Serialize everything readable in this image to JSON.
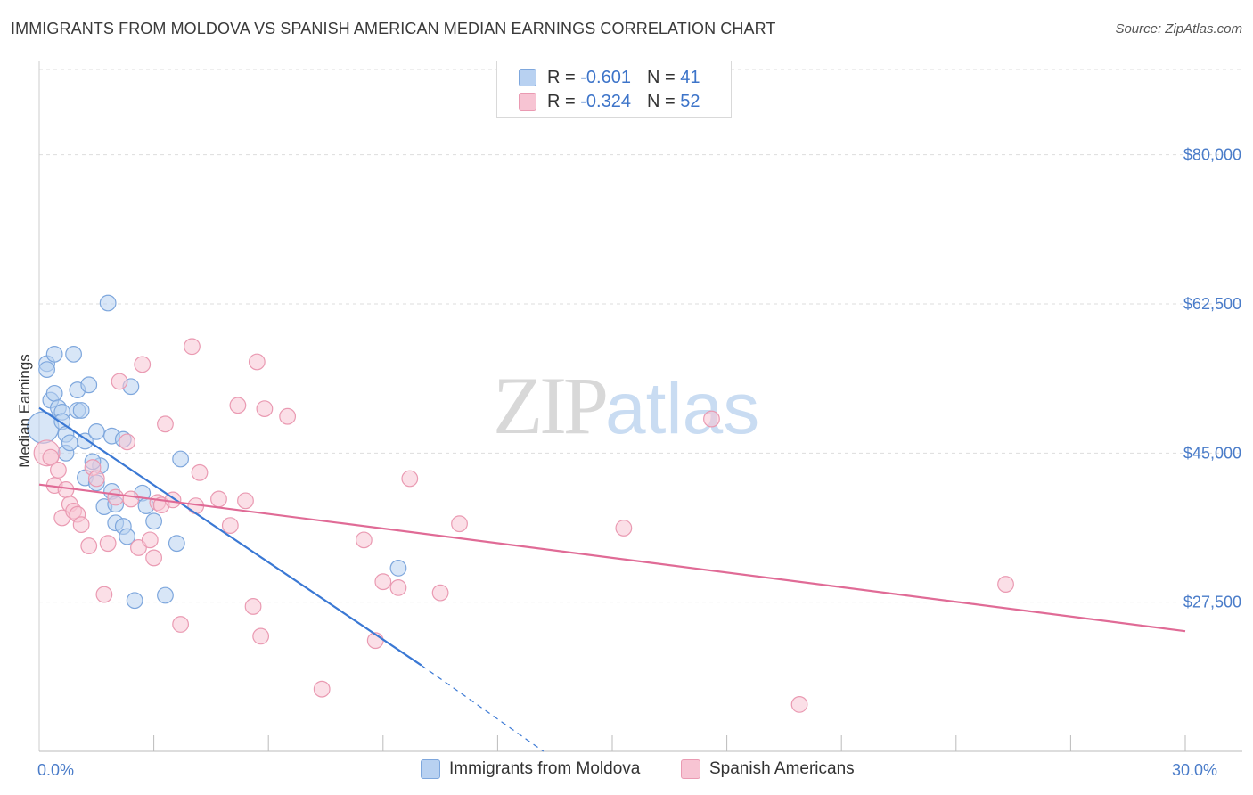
{
  "title": "IMMIGRANTS FROM MOLDOVA VS SPANISH AMERICAN MEDIAN EARNINGS CORRELATION CHART",
  "source": "Source: ZipAtlas.com",
  "watermark": {
    "zip": "ZIP",
    "atlas": "atlas"
  },
  "legend": {
    "rows": [
      {
        "r_label": "R =",
        "r_value": "-0.601",
        "n_label": "N =",
        "n_value": "41"
      },
      {
        "r_label": "R =",
        "r_value": "-0.324",
        "n_label": "N =",
        "n_value": "52"
      }
    ]
  },
  "colors": {
    "blue_fill": "#b8d1f1",
    "blue_stroke": "#7ea7dd",
    "blue_line": "#3a78d4",
    "pink_fill": "#f7c4d3",
    "pink_stroke": "#ea9ab2",
    "pink_line": "#e06b96",
    "grid": "#dddddd",
    "axis_text": "#4a7cc9"
  },
  "chart_data": {
    "type": "scatter",
    "title": "IMMIGRANTS FROM MOLDOVA VS SPANISH AMERICAN MEDIAN EARNINGS CORRELATION CHART",
    "xlabel": "",
    "ylabel": "Median Earnings",
    "xlim": [
      0,
      30
    ],
    "ylim": [
      10000,
      90000
    ],
    "x_tick_labels": [
      {
        "value": 0,
        "label": "0.0%"
      },
      {
        "value": 30,
        "label": "30.0%"
      }
    ],
    "x_minor_ticks": [
      3,
      6,
      9,
      12,
      15,
      18,
      21,
      24,
      27,
      30
    ],
    "y_ticks": [
      {
        "value": 80000,
        "label": "$80,000"
      },
      {
        "value": 62500,
        "label": "$62,500"
      },
      {
        "value": 45000,
        "label": "$45,000"
      },
      {
        "value": 27500,
        "label": "$27,500"
      }
    ],
    "grid": true,
    "series": [
      {
        "name": "Immigrants from Moldova",
        "color": "blue",
        "points": [
          [
            0.1,
            48000,
            22
          ],
          [
            0.2,
            55500,
            11
          ],
          [
            0.2,
            54800,
            11
          ],
          [
            0.4,
            56600,
            11
          ],
          [
            0.3,
            51200,
            11
          ],
          [
            0.4,
            52000,
            11
          ],
          [
            0.5,
            50300,
            11
          ],
          [
            0.6,
            49800,
            11
          ],
          [
            0.6,
            48700,
            11
          ],
          [
            0.7,
            47200,
            11
          ],
          [
            0.7,
            45000,
            11
          ],
          [
            0.8,
            46200,
            11
          ],
          [
            0.9,
            56600,
            11
          ],
          [
            1.0,
            52400,
            11
          ],
          [
            1.0,
            50000,
            11
          ],
          [
            1.1,
            50000,
            11
          ],
          [
            1.2,
            46400,
            11
          ],
          [
            1.3,
            53000,
            11
          ],
          [
            1.2,
            42100,
            11
          ],
          [
            1.5,
            41500,
            11
          ],
          [
            1.5,
            47500,
            11
          ],
          [
            1.6,
            43500,
            11
          ],
          [
            1.7,
            38700,
            11
          ],
          [
            1.9,
            47000,
            11
          ],
          [
            1.9,
            40500,
            11
          ],
          [
            2.0,
            39000,
            11
          ],
          [
            2.0,
            36800,
            11
          ],
          [
            2.2,
            36400,
            11
          ],
          [
            2.2,
            46600,
            11
          ],
          [
            2.3,
            35200,
            11
          ],
          [
            2.4,
            52800,
            11
          ],
          [
            1.8,
            62600,
            11
          ],
          [
            2.5,
            27700,
            11
          ],
          [
            2.7,
            40300,
            11
          ],
          [
            2.8,
            38800,
            11
          ],
          [
            3.0,
            37000,
            11
          ],
          [
            3.3,
            28300,
            11
          ],
          [
            3.6,
            34400,
            11
          ],
          [
            3.7,
            44300,
            11
          ],
          [
            9.4,
            31500,
            11
          ],
          [
            1.4,
            44000,
            11
          ]
        ],
        "trend": {
          "x0": 0,
          "y0": 50300,
          "x1": 10.0,
          "y1": 20100,
          "dash_x1": 13.2,
          "dash_y1": 10000
        }
      },
      {
        "name": "Spanish Americans",
        "color": "pink",
        "points": [
          [
            0.2,
            45000,
            18
          ],
          [
            0.3,
            44500,
            11
          ],
          [
            0.4,
            41200,
            11
          ],
          [
            0.5,
            43000,
            11
          ],
          [
            0.6,
            37400,
            11
          ],
          [
            0.7,
            40700,
            11
          ],
          [
            0.8,
            39000,
            11
          ],
          [
            0.9,
            38200,
            11
          ],
          [
            1.0,
            37800,
            11
          ],
          [
            1.1,
            36600,
            11
          ],
          [
            1.3,
            34100,
            11
          ],
          [
            1.4,
            43300,
            11
          ],
          [
            1.5,
            42000,
            11
          ],
          [
            1.7,
            28400,
            11
          ],
          [
            1.8,
            34400,
            11
          ],
          [
            2.0,
            39800,
            11
          ],
          [
            2.1,
            53400,
            11
          ],
          [
            2.3,
            46300,
            11
          ],
          [
            2.4,
            39600,
            11
          ],
          [
            2.6,
            33900,
            11
          ],
          [
            2.7,
            55400,
            11
          ],
          [
            2.9,
            34800,
            11
          ],
          [
            3.0,
            32700,
            11
          ],
          [
            3.1,
            39200,
            11
          ],
          [
            3.2,
            38900,
            11
          ],
          [
            3.3,
            48400,
            11
          ],
          [
            3.5,
            39500,
            11
          ],
          [
            3.7,
            24900,
            11
          ],
          [
            4.0,
            57500,
            11
          ],
          [
            4.1,
            38800,
            11
          ],
          [
            4.2,
            42700,
            11
          ],
          [
            4.7,
            39600,
            11
          ],
          [
            5.0,
            36500,
            11
          ],
          [
            5.2,
            50600,
            11
          ],
          [
            5.4,
            39400,
            11
          ],
          [
            5.6,
            27000,
            11
          ],
          [
            5.8,
            23500,
            11
          ],
          [
            5.7,
            55700,
            11
          ],
          [
            5.9,
            50200,
            11
          ],
          [
            6.5,
            49300,
            11
          ],
          [
            7.4,
            17300,
            11
          ],
          [
            8.5,
            34800,
            11
          ],
          [
            8.8,
            23000,
            11
          ],
          [
            9.0,
            29900,
            11
          ],
          [
            9.4,
            29200,
            11
          ],
          [
            9.7,
            42000,
            11
          ],
          [
            10.5,
            28600,
            11
          ],
          [
            11.0,
            36700,
            11
          ],
          [
            15.3,
            36200,
            11
          ],
          [
            17.6,
            49000,
            11
          ],
          [
            19.9,
            15500,
            11
          ],
          [
            25.3,
            29600,
            11
          ]
        ],
        "trend": {
          "x0": 0,
          "y0": 41300,
          "x1": 30,
          "y1": 24100
        }
      }
    ]
  },
  "bottom_legend": {
    "items": [
      {
        "label": "Immigrants from Moldova"
      },
      {
        "label": "Spanish Americans"
      }
    ]
  }
}
